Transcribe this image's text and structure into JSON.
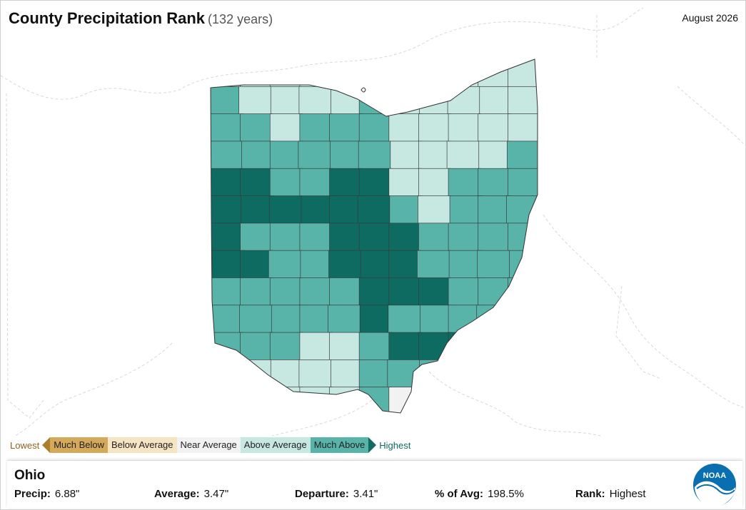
{
  "header": {
    "title": "County Precipitation Rank",
    "subtitle": "(132 years)",
    "date": "August 2026"
  },
  "colors": {
    "much_below": "#d4a95a",
    "below_average": "#f6e5c2",
    "near_average": "#f2f2f2",
    "above_average": "#c6e8e1",
    "much_above": "#58b3a8",
    "highest": "#0e6b61",
    "lowest": "#a97f2e"
  },
  "legend": {
    "lowest": "Lowest",
    "items": [
      "Much Below",
      "Below Average",
      "Near Average",
      "Above Average",
      "Much Above"
    ],
    "highest": "Highest"
  },
  "info": {
    "state": "Ohio",
    "precip_label": "Precip:",
    "precip_value": "6.88\"",
    "average_label": "Average:",
    "average_value": "3.47\"",
    "departure_label": "Departure:",
    "departure_value": "3.41\"",
    "pct_label": "% of Avg:",
    "pct_value": "198.5%",
    "rank_label": "Rank:",
    "rank_value": "Highest"
  },
  "logo": {
    "text": "NOAA"
  },
  "map": {
    "rows": [
      [
        "above_average",
        "above_average",
        "above_average",
        "above_average",
        "above_average",
        "above_average",
        "above_average",
        "above_average",
        "above_average",
        "above_average",
        "above_average"
      ],
      [
        "much_above",
        "above_average",
        "above_average",
        "above_average",
        "above_average",
        "much_above",
        "above_average",
        "above_average",
        "above_average",
        "above_average",
        "above_average"
      ],
      [
        "much_above",
        "much_above",
        "above_average",
        "much_above",
        "much_above",
        "much_above",
        "above_average",
        "above_average",
        "above_average",
        "above_average",
        "above_average"
      ],
      [
        "much_above",
        "much_above",
        "much_above",
        "much_above",
        "much_above",
        "much_above",
        "above_average",
        "above_average",
        "above_average",
        "above_average",
        "much_above"
      ],
      [
        "highest",
        "highest",
        "much_above",
        "much_above",
        "highest",
        "highest",
        "above_average",
        "above_average",
        "much_above",
        "much_above",
        "much_above"
      ],
      [
        "highest",
        "highest",
        "highest",
        "highest",
        "highest",
        "highest",
        "much_above",
        "above_average",
        "much_above",
        "much_above",
        "much_above"
      ],
      [
        "highest",
        "much_above",
        "much_above",
        "much_above",
        "highest",
        "highest",
        "highest",
        "much_above",
        "much_above",
        "much_above",
        "much_above"
      ],
      [
        "highest",
        "highest",
        "much_above",
        "much_above",
        "highest",
        "highest",
        "highest",
        "much_above",
        "much_above",
        "much_above",
        "much_above"
      ],
      [
        "much_above",
        "much_above",
        "much_above",
        "much_above",
        "much_above",
        "highest",
        "highest",
        "highest",
        "much_above",
        "much_above",
        "much_above"
      ],
      [
        "much_above",
        "much_above",
        "much_above",
        "much_above",
        "much_above",
        "highest",
        "much_above",
        "much_above",
        "much_above",
        "much_above",
        "much_above"
      ],
      [
        "much_above",
        "much_above",
        "much_above",
        "above_average",
        "above_average",
        "much_above",
        "highest",
        "highest",
        "highest",
        "much_above",
        "much_above"
      ],
      [
        "much_above",
        "above_average",
        "above_average",
        "above_average",
        "above_average",
        "much_above",
        "much_above",
        "much_above",
        "much_above",
        "much_above",
        "much_above"
      ],
      [
        "much_above",
        "above_average",
        "above_average",
        "above_average",
        "above_average",
        "much_above",
        "near_average",
        "much_above",
        "much_above",
        "much_above",
        "much_above"
      ]
    ]
  }
}
